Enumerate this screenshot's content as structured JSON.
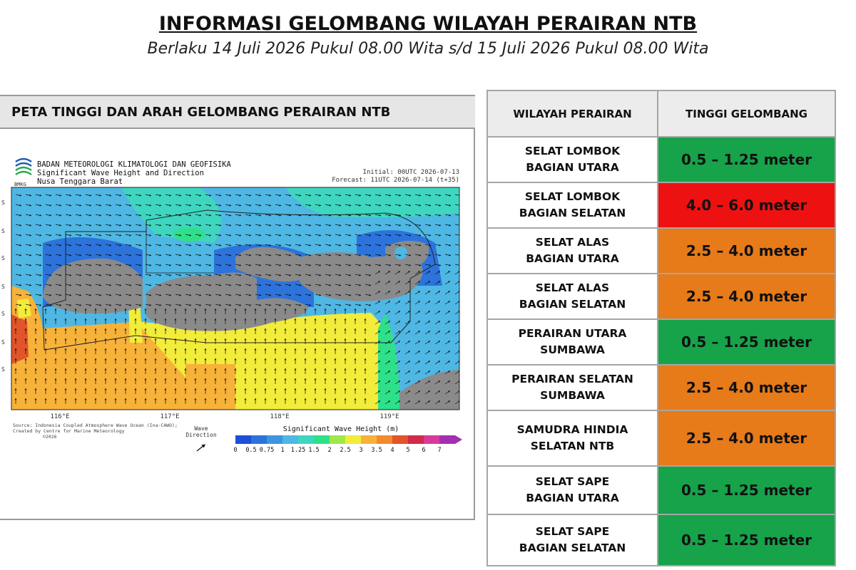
{
  "header": {
    "title": "INFORMASI GELOMBANG WILAYAH PERAIRAN NTB",
    "subtitle": "Berlaku 14 Juli 2026 Pukul 08.00 Wita s/d 15 Juli 2026 Pukul 08.00 Wita"
  },
  "map_panel": {
    "title": "PETA TINGGI DAN ARAH GELOMBANG PERAIRAN NTB",
    "agency": "BADAN METEOROLOGI KLIMATOLOGI DAN GEOFISIKA",
    "product": "Significant Wave Height and Direction",
    "region": "Nusa Tenggara Barat",
    "initial": "Initial: 00UTC 2026-07-13",
    "forecast": "Forecast: 11UTC 2026-07-14 (t+35)",
    "bmkg_label": "BMKG",
    "lon_labels": [
      "116°E",
      "117°E",
      "118°E",
      "119°E"
    ],
    "lat_labels": [
      "S",
      "S",
      "S",
      "S",
      "S",
      "S",
      "S"
    ],
    "source_line1": "Source: Indonesia Coupled Atmosphere Wave Ocean (Ina-CAWO);",
    "source_line2": "Created by Centre for Marine Meteorology",
    "source_line3": "©2026",
    "wave_dir_label1": "Wave",
    "wave_dir_label2": "Direction",
    "legend_title": "Significant Wave Height (m)",
    "legend_ticks": [
      "0",
      "0.5",
      "0.75",
      "1",
      "1.25",
      "1.5",
      "2",
      "2.5",
      "3",
      "3.5",
      "4",
      "5",
      "6",
      "7"
    ],
    "legend_colors": [
      "#1f4fd8",
      "#2c73dc",
      "#3d95e0",
      "#4fb7e3",
      "#3fd6c0",
      "#2fe08a",
      "#9ee84a",
      "#f2ec3b",
      "#f7b23a",
      "#f38a2e",
      "#e2542a",
      "#d12b4a",
      "#d63b9c",
      "#a42fb0"
    ]
  },
  "table": {
    "headers": [
      "WILAYAH PERAIRAN",
      "TINGGI GELOMBANG"
    ],
    "rows": [
      {
        "region_line1": "SELAT LOMBOK",
        "region_line2": "BAGIAN UTARA",
        "height": "0.5 – 1.25 meter",
        "color": "#16a34a"
      },
      {
        "region_line1": "SELAT LOMBOK",
        "region_line2": "BAGIAN SELATAN",
        "height": "4.0 – 6.0 meter",
        "color": "#ee1111"
      },
      {
        "region_line1": "SELAT ALAS",
        "region_line2": "BAGIAN UTARA",
        "height": "2.5 – 4.0 meter",
        "color": "#e77a19"
      },
      {
        "region_line1": "SELAT ALAS",
        "region_line2": "BAGIAN SELATAN",
        "height": "2.5 – 4.0 meter",
        "color": "#e77a19"
      },
      {
        "region_line1": "PERAIRAN UTARA",
        "region_line2": "SUMBAWA",
        "height": "0.5 – 1.25 meter",
        "color": "#16a34a"
      },
      {
        "region_line1": "PERAIRAN SELATAN",
        "region_line2": "SUMBAWA",
        "height": "2.5 – 4.0 meter",
        "color": "#e77a19"
      },
      {
        "region_line1": "SAMUDRA HINDIA",
        "region_line2": "SELATAN NTB",
        "height": "2.5 – 4.0 meter",
        "color": "#e77a19"
      },
      {
        "region_line1": "SELAT SAPE",
        "region_line2": "BAGIAN UTARA",
        "height": "0.5 – 1.25 meter",
        "color": "#16a34a"
      },
      {
        "region_line1": "SELAT SAPE",
        "region_line2": "BAGIAN SELATAN",
        "height": "0.5 – 1.25 meter",
        "color": "#16a34a"
      }
    ]
  }
}
